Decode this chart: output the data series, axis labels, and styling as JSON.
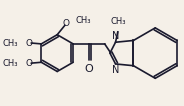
{
  "bg_color": "#f5f0e8",
  "line_color": "#1a1a2e",
  "lw": 1.2,
  "fs": 6.5,
  "xlim": [
    0,
    10
  ],
  "ylim": [
    0,
    5.75
  ],
  "figsize": [
    1.84,
    1.06
  ],
  "dpi": 100
}
